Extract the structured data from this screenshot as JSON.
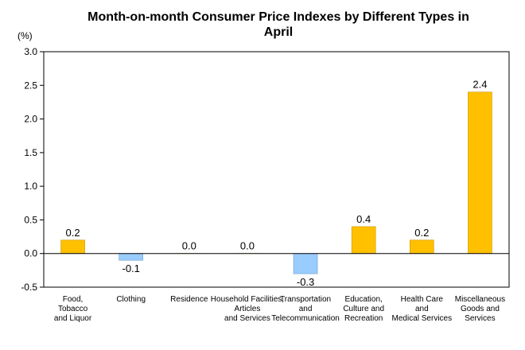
{
  "chart_data": {
    "type": "bar",
    "title_lines": [
      "Month-on-month Consumer Price Indexes by Different Types in",
      "April"
    ],
    "unit_label": "(%)",
    "categories": [
      [
        "Food,",
        "Tobacco",
        "and Liquor"
      ],
      [
        "Clothing"
      ],
      [
        "Residence"
      ],
      [
        "Household Facilities,",
        "Articles",
        "and Services"
      ],
      [
        "Transportation",
        "and",
        "Telecommunication"
      ],
      [
        "Education,",
        "Culture and",
        "Recreation"
      ],
      [
        "Health Care",
        "and",
        "Medical Services"
      ],
      [
        "Miscellaneous",
        "Goods and",
        "Services"
      ]
    ],
    "values": [
      0.2,
      -0.1,
      0.0,
      0.0,
      -0.3,
      0.4,
      0.2,
      2.4
    ],
    "data_labels": [
      "0.2",
      "-0.1",
      "0.0",
      "0.0",
      "-0.3",
      "0.4",
      "0.2",
      "2.4"
    ],
    "ylim": [
      -0.5,
      3.0
    ],
    "yticks": [
      "-0.5",
      "0.0",
      "0.5",
      "1.0",
      "1.5",
      "2.0",
      "2.5",
      "3.0"
    ],
    "colors": {
      "positive": "#FFC000",
      "negative": "#99CCFF",
      "positive_edge": "#C89600",
      "negative_edge": "#6E9ECC"
    },
    "grid": false,
    "legend": "none"
  }
}
